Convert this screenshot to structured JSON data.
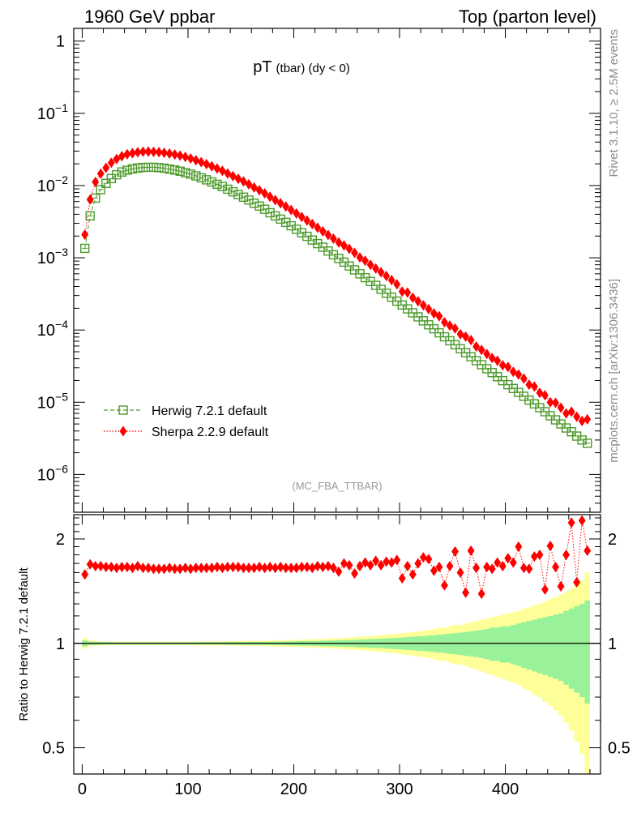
{
  "header": {
    "left": "1960 GeV ppbar",
    "right": "Top (parton level)"
  },
  "side": {
    "top": "Rivet 3.1.10, ≥ 2.5M events",
    "bottom": "mcplots.cern.ch [arXiv:1306.3436]"
  },
  "chart_data": [
    {
      "type": "scatter",
      "title": "pT",
      "title_small": "(tbar) (dy < 0)",
      "watermark": "(MC_FBA_TTBAR)",
      "yscale": "log",
      "ylim": [
        3e-07,
        1.5
      ],
      "xlim": [
        -8,
        490
      ],
      "y_ticks": [
        {
          "value": 1,
          "label": "1"
        },
        {
          "value": 0.1,
          "label": "10",
          "exp": "−1"
        },
        {
          "value": 0.01,
          "label": "10",
          "exp": "−2"
        },
        {
          "value": 0.001,
          "label": "10",
          "exp": "−3"
        },
        {
          "value": 0.0001,
          "label": "10",
          "exp": "−4"
        },
        {
          "value": 1e-05,
          "label": "10",
          "exp": "−5"
        },
        {
          "value": 1e-06,
          "label": "10",
          "exp": "−6"
        }
      ],
      "legend": {
        "position": "bottom-left"
      },
      "x": [
        2.5,
        7.5,
        12.5,
        17.5,
        22.5,
        27.5,
        32.5,
        37.5,
        42.5,
        47.5,
        52.5,
        57.5,
        62.5,
        67.5,
        72.5,
        77.5,
        82.5,
        87.5,
        92.5,
        97.5,
        102.5,
        107.5,
        112.5,
        117.5,
        122.5,
        127.5,
        132.5,
        137.5,
        142.5,
        147.5,
        152.5,
        157.5,
        162.5,
        167.5,
        172.5,
        177.5,
        182.5,
        187.5,
        192.5,
        197.5,
        202.5,
        207.5,
        212.5,
        217.5,
        222.5,
        227.5,
        232.5,
        237.5,
        242.5,
        247.5,
        252.5,
        257.5,
        262.5,
        267.5,
        272.5,
        277.5,
        282.5,
        287.5,
        292.5,
        297.5,
        302.5,
        307.5,
        312.5,
        317.5,
        322.5,
        327.5,
        332.5,
        337.5,
        342.5,
        347.5,
        352.5,
        357.5,
        362.5,
        367.5,
        372.5,
        377.5,
        382.5,
        387.5,
        392.5,
        397.5,
        402.5,
        407.5,
        412.5,
        417.5,
        422.5,
        427.5,
        432.5,
        437.5,
        442.5,
        447.5,
        452.5,
        457.5,
        462.5,
        467.5,
        472.5,
        477.5
      ],
      "series": [
        {
          "name": "Herwig 7.2.1 default",
          "color": "#4c9a2a",
          "marker": "open-square",
          "line": "dashed",
          "values": [
            0.00135,
            0.0038,
            0.0067,
            0.0088,
            0.0107,
            0.0125,
            0.0141,
            0.0154,
            0.0163,
            0.017,
            0.0175,
            0.0178,
            0.0179,
            0.0179,
            0.0177,
            0.0174,
            0.0169,
            0.0164,
            0.0158,
            0.0151,
            0.0144,
            0.0136,
            0.0128,
            0.012,
            0.0112,
            0.0104,
            0.0097,
            0.0089,
            0.0082,
            0.0075,
            0.0069,
            0.0063,
            0.0057,
            0.0052,
            0.0047,
            0.0042,
            0.0038,
            0.00343,
            0.00309,
            0.00277,
            0.00248,
            0.00222,
            0.00198,
            0.00176,
            0.00157,
            0.0014,
            0.00124,
            0.0011,
            0.00098,
            0.00087,
            0.00077,
            0.00068,
            0.0006,
            0.00053,
            0.00047,
            0.000415,
            0.000366,
            0.000323,
            0.000285,
            0.000251,
            0.000222,
            0.000196,
            0.000173,
            0.000152,
            0.000134,
            0.000118,
            0.000104,
            9.15e-05,
            8.05e-05,
            7.1e-05,
            6.25e-05,
            5.5e-05,
            4.85e-05,
            4.27e-05,
            3.76e-05,
            3.31e-05,
            2.91e-05,
            2.57e-05,
            2.26e-05,
            1.99e-05,
            1.75e-05,
            1.55e-05,
            1.37e-05,
            1.21e-05,
            1.07e-05,
            9.5e-06,
            8.4e-06,
            7.4e-06,
            6.5e-06,
            5.7e-06,
            5e-06,
            4.4e-06,
            3.9e-06,
            3.4e-06,
            3e-06,
            2.7e-06
          ]
        },
        {
          "name": "Sherpa 2.2.9 default",
          "color": "#ff0000",
          "marker": "filled-diamond",
          "line": "dotted",
          "values": [
            0.00209,
            0.0064,
            0.0112,
            0.0146,
            0.0176,
            0.0207,
            0.0233,
            0.0255,
            0.0271,
            0.0281,
            0.0289,
            0.0294,
            0.0295,
            0.0293,
            0.029,
            0.0284,
            0.0277,
            0.0269,
            0.026,
            0.0249,
            0.0237,
            0.0224,
            0.0211,
            0.0198,
            0.0185,
            0.0172,
            0.016,
            0.0147,
            0.0135,
            0.0124,
            0.0114,
            0.0104,
            0.0094,
            0.0086,
            0.0078,
            0.007,
            0.0063,
            0.00569,
            0.00512,
            0.00459,
            0.00411,
            0.00368,
            0.00328,
            0.00293,
            0.00261,
            0.00232,
            0.00207,
            0.00184,
            0.00163,
            0.00148,
            0.00133,
            0.00117,
            0.00101,
            0.00091,
            0.0008,
            0.00071,
            0.00063,
            0.00056,
            0.00049,
            0.00043,
            0.00034,
            0.00033,
            0.00028,
            0.00025,
            0.00022,
            0.000195,
            0.00017,
            0.000155,
            0.000128,
            0.000115,
            0.000105,
            8.75e-05,
            8.1e-05,
            7.25e-05,
            5.9e-05,
            5.3e-05,
            4.66e-05,
            4.1e-05,
            3.75e-05,
            3.25e-05,
            3.08e-05,
            2.64e-05,
            2.42e-05,
            2.13e-05,
            1.75e-05,
            1.65e-05,
            1.35e-05,
            1.25e-05,
            1e-05,
            9.8e-06,
            8.4e-06,
            7e-06,
            7.4e-06,
            6.3e-06,
            5.5e-06,
            5.8e-06
          ]
        }
      ]
    },
    {
      "type": "scatter",
      "ylabel": "Ratio to Herwig 7.2.1 default",
      "yscale": "log",
      "ylim": [
        0.42,
        2.35
      ],
      "xlim": [
        -8,
        490
      ],
      "y_ticks": [
        {
          "value": 2,
          "label": "2"
        },
        {
          "value": 1,
          "label": "1"
        },
        {
          "value": 0.5,
          "label": "0.5"
        }
      ],
      "x_ticks": [
        {
          "value": 0,
          "label": "0"
        },
        {
          "value": 100,
          "label": "100"
        },
        {
          "value": 200,
          "label": "200"
        },
        {
          "value": 300,
          "label": "300"
        },
        {
          "value": 400,
          "label": "400"
        }
      ],
      "reference_line": 1,
      "bands": {
        "inner_color": "#99f299",
        "outer_color": "#ffff99",
        "inner_halfwidth": [
          0.02,
          0.012,
          0.01,
          0.009,
          0.008,
          0.008,
          0.007,
          0.007,
          0.007,
          0.007,
          0.007,
          0.007,
          0.007,
          0.007,
          0.007,
          0.007,
          0.007,
          0.007,
          0.007,
          0.007,
          0.007,
          0.007,
          0.008,
          0.008,
          0.008,
          0.008,
          0.008,
          0.009,
          0.009,
          0.009,
          0.009,
          0.01,
          0.01,
          0.01,
          0.011,
          0.011,
          0.012,
          0.012,
          0.013,
          0.013,
          0.014,
          0.015,
          0.015,
          0.016,
          0.017,
          0.018,
          0.019,
          0.02,
          0.021,
          0.022,
          0.023,
          0.024,
          0.026,
          0.027,
          0.029,
          0.03,
          0.032,
          0.034,
          0.036,
          0.038,
          0.04,
          0.043,
          0.045,
          0.048,
          0.05,
          0.053,
          0.056,
          0.06,
          0.063,
          0.067,
          0.07,
          0.074,
          0.079,
          0.083,
          0.088,
          0.093,
          0.1,
          0.11,
          0.11,
          0.12,
          0.12,
          0.13,
          0.14,
          0.15,
          0.16,
          0.17,
          0.18,
          0.19,
          0.2,
          0.21,
          0.22,
          0.24,
          0.26,
          0.28,
          0.3,
          0.33
        ],
        "outer_halfwidth": [
          0.035,
          0.02,
          0.016,
          0.014,
          0.013,
          0.012,
          0.012,
          0.012,
          0.012,
          0.012,
          0.012,
          0.012,
          0.012,
          0.012,
          0.012,
          0.012,
          0.012,
          0.012,
          0.012,
          0.012,
          0.012,
          0.012,
          0.013,
          0.013,
          0.013,
          0.014,
          0.014,
          0.014,
          0.015,
          0.015,
          0.016,
          0.016,
          0.017,
          0.017,
          0.018,
          0.019,
          0.02,
          0.021,
          0.022,
          0.023,
          0.024,
          0.025,
          0.026,
          0.027,
          0.029,
          0.03,
          0.032,
          0.034,
          0.036,
          0.038,
          0.04,
          0.042,
          0.045,
          0.047,
          0.05,
          0.053,
          0.056,
          0.059,
          0.063,
          0.066,
          0.07,
          0.074,
          0.079,
          0.083,
          0.088,
          0.094,
          0.1,
          0.11,
          0.11,
          0.12,
          0.13,
          0.13,
          0.14,
          0.15,
          0.16,
          0.17,
          0.18,
          0.19,
          0.2,
          0.21,
          0.22,
          0.23,
          0.24,
          0.26,
          0.27,
          0.29,
          0.3,
          0.32,
          0.34,
          0.36,
          0.38,
          0.41,
          0.44,
          0.48,
          0.52,
          0.6
        ]
      },
      "series": [
        {
          "name": "Sherpa 2.2.9 default",
          "color": "#ff0000",
          "marker": "filled-diamond",
          "line": "dotted",
          "values": [
            1.58,
            1.69,
            1.67,
            1.67,
            1.66,
            1.66,
            1.65,
            1.66,
            1.66,
            1.65,
            1.67,
            1.65,
            1.65,
            1.64,
            1.64,
            1.64,
            1.65,
            1.64,
            1.64,
            1.65,
            1.64,
            1.65,
            1.65,
            1.65,
            1.65,
            1.66,
            1.65,
            1.66,
            1.66,
            1.66,
            1.65,
            1.65,
            1.65,
            1.66,
            1.65,
            1.66,
            1.65,
            1.66,
            1.65,
            1.65,
            1.65,
            1.66,
            1.66,
            1.65,
            1.67,
            1.66,
            1.67,
            1.65,
            1.61,
            1.7,
            1.68,
            1.59,
            1.67,
            1.71,
            1.68,
            1.73,
            1.68,
            1.72,
            1.71,
            1.74,
            1.54,
            1.67,
            1.58,
            1.7,
            1.77,
            1.75,
            1.62,
            1.66,
            1.47,
            1.67,
            1.84,
            1.6,
            1.4,
            1.85,
            1.65,
            1.39,
            1.66,
            1.64,
            1.71,
            1.67,
            1.76,
            1.71,
            1.9,
            1.65,
            1.64,
            1.78,
            1.8,
            1.43,
            1.91,
            1.66,
            1.46,
            1.8,
            2.23,
            1.5,
            2.26,
            1.85
          ]
        }
      ]
    }
  ]
}
